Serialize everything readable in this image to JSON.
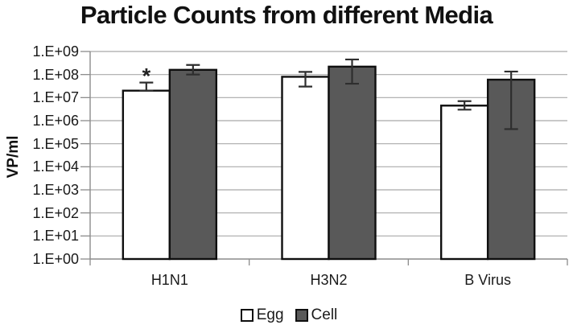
{
  "page": {
    "background": "#ffffff"
  },
  "chart_data": {
    "type": "bar",
    "title": "Particle Counts from different Media",
    "ylabel": "VP/ml",
    "xlabel": "",
    "y_scale": "log",
    "ylim": [
      1.0,
      1000000000.0
    ],
    "y_tick_labels": [
      "1.E+09",
      "1.E+08",
      "1.E+07",
      "1.E+06",
      "1.E+05",
      "1.E+04",
      "1.E+03",
      "1.E+02",
      "1.E+01",
      "1.E+00"
    ],
    "categories": [
      "H1N1",
      "H3N2",
      "B Virus"
    ],
    "series": [
      {
        "name": "Egg",
        "fill": "#ffffff",
        "values": [
          20000000.0,
          80000000.0,
          4500000.0
        ],
        "error_hi": [
          45000000.0,
          130000000.0,
          7000000.0
        ],
        "error_lo": [
          20000000.0,
          30000000.0,
          3000000.0
        ]
      },
      {
        "name": "Cell",
        "fill": "#595959",
        "values": [
          160000000.0,
          220000000.0,
          60000000.0
        ],
        "error_hi": [
          260000000.0,
          450000000.0,
          135000000.0
        ],
        "error_lo": [
          100000000.0,
          40000000.0,
          430000.0
        ]
      }
    ],
    "annotations": [
      {
        "text": "*",
        "category": "H1N1",
        "series": "Egg"
      }
    ],
    "legend": {
      "position": "bottom",
      "entries": [
        "Egg",
        "Cell"
      ]
    },
    "grid": true
  },
  "colors": {
    "title_text": "#111111",
    "axis_text": "#1a1a1a",
    "bar_border": "#0f0f0f",
    "gridline": "#a9a9a9",
    "axis_line": "#8c8c8c",
    "error_bar": "#2e2e2e"
  }
}
